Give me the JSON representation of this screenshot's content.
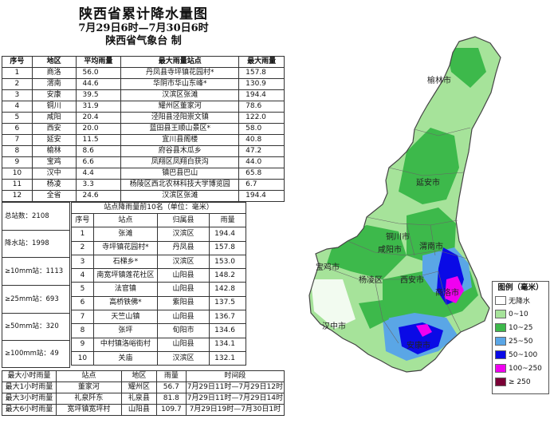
{
  "title": {
    "main": "陕西省累计降水量图",
    "period": "7月29日6时—7月30日6时",
    "issuer": "陕西省气象台  制"
  },
  "region_table": {
    "headers": [
      "序号",
      "地区",
      "平均雨量",
      "最大雨量站点",
      "最大雨量"
    ],
    "rows": [
      [
        "1",
        "商洛",
        "56.0",
        "丹凤县寺坪镇花园村*",
        "157.8"
      ],
      [
        "2",
        "渭南",
        "44.6",
        "华阴市华山东峰*",
        "130.9"
      ],
      [
        "3",
        "安康",
        "39.5",
        "汉滨区张滩",
        "194.4"
      ],
      [
        "4",
        "铜川",
        "31.9",
        "耀州区董家河",
        "78.6"
      ],
      [
        "5",
        "咸阳",
        "20.4",
        "泾阳县泾阳崇文镇",
        "122.0"
      ],
      [
        "6",
        "西安",
        "20.0",
        "蓝田县王顺山景区*",
        "58.0"
      ],
      [
        "7",
        "延安",
        "11.5",
        "宜川县阁楼",
        "40.8"
      ],
      [
        "8",
        "榆林",
        "8.6",
        "府谷县木瓜乡",
        "47.2"
      ],
      [
        "9",
        "宝鸡",
        "6.6",
        "凤翔区凤翔白获沟",
        "44.0"
      ],
      [
        "10",
        "汉中",
        "4.4",
        "镇巴县巴山",
        "65.8"
      ],
      [
        "11",
        "杨凌",
        "3.3",
        "杨陵区西北农林科技大学博览园",
        "6.7"
      ],
      [
        "12",
        "全省",
        "24.6",
        "汉滨区张滩",
        "194.4"
      ]
    ]
  },
  "summary": {
    "total_stations": "总站数：2108",
    "rain_stations": "降水站：1998",
    "ge10": "≥10mm站：1113",
    "ge25": "≥25mm站：693",
    "ge50": "≥50mm站：320",
    "ge100": "≥100mm站：49"
  },
  "top10": {
    "caption": "站点降雨量前10名（单位：毫米）",
    "headers": [
      "序号",
      "站点",
      "归属县",
      "雨量"
    ],
    "rows": [
      [
        "1",
        "张滩",
        "汉滨区",
        "194.4"
      ],
      [
        "2",
        "寺坪镇花园村*",
        "丹凤县",
        "157.8"
      ],
      [
        "3",
        "石梯乡*",
        "汉滨区",
        "153.0"
      ],
      [
        "4",
        "南宽坪镇莲花社区",
        "山阳县",
        "148.2"
      ],
      [
        "5",
        "法官镇",
        "山阳县",
        "142.8"
      ],
      [
        "6",
        "高桥铁佛*",
        "紫阳县",
        "137.5"
      ],
      [
        "7",
        "天竺山镇",
        "山阳县",
        "136.7"
      ],
      [
        "8",
        "张坪",
        "旬阳市",
        "134.6"
      ],
      [
        "9",
        "中村镇洛峪街村",
        "山阳县",
        "134.1"
      ],
      [
        "10",
        "关庙",
        "汉滨区",
        "132.1"
      ]
    ]
  },
  "hour_table": {
    "headers": [
      "最大小时雨量",
      "站点",
      "地区",
      "雨量",
      "时间段"
    ],
    "rows": [
      [
        "最大1小时雨量",
        "董家河",
        "耀州区",
        "56.7",
        "7月29日11时—7月29日12时"
      ],
      [
        "最大3小时雨量",
        "礼泉阡东",
        "礼泉县",
        "81.8",
        "7月29日11时—7月29日14时"
      ],
      [
        "最大6小时雨量",
        "宽坪镇宽坪村",
        "山阳县",
        "109.7",
        "7月29日19时—7月30日1时"
      ]
    ]
  },
  "map": {
    "cities": [
      "榆林市",
      "延安市",
      "铜川市",
      "咸阳市",
      "渭南市",
      "宝鸡市",
      "杨凌区",
      "西安市",
      "商洛市",
      "汉中市",
      "安康市"
    ],
    "colors": {
      "none": "#ffffff",
      "c0_10": "#a6e39a",
      "c10_25": "#3db94b",
      "c25_50": "#5aa6e6",
      "c50_100": "#0a0ae6",
      "c100_250": "#f000f0",
      "c250": "#7a0036"
    }
  },
  "legend": {
    "title": "图例（毫米）",
    "items": [
      {
        "label": "无降水",
        "color": "#ffffff"
      },
      {
        "label": "0~10",
        "color": "#a6e39a"
      },
      {
        "label": "10~25",
        "color": "#3db94b"
      },
      {
        "label": "25~50",
        "color": "#5aa6e6"
      },
      {
        "label": "50~100",
        "color": "#0a0ae6"
      },
      {
        "label": "100~250",
        "color": "#f000f0"
      },
      {
        "label": "≥ 250",
        "color": "#7a0036"
      }
    ]
  }
}
